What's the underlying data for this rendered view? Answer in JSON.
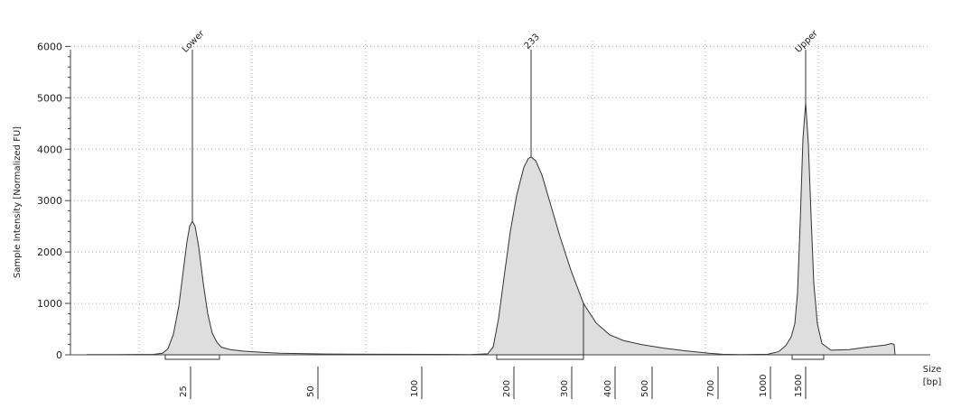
{
  "chart_data": {
    "type": "area",
    "title": "",
    "ylabel": "Sample Intensity [Normalized FU]",
    "xlabel_line1": "Size",
    "xlabel_line2": "[bp]",
    "ylim": [
      0,
      6200
    ],
    "yticks": [
      0,
      1000,
      2000,
      3000,
      4000,
      5000,
      6000
    ],
    "grid": true,
    "x_ticks": [
      {
        "label": "25",
        "x": 211
      },
      {
        "label": "50",
        "x": 352
      },
      {
        "label": "100",
        "x": 467
      },
      {
        "label": "200",
        "x": 569
      },
      {
        "label": "300",
        "x": 633
      },
      {
        "label": "400",
        "x": 681
      },
      {
        "label": "500",
        "x": 722
      },
      {
        "label": "700",
        "x": 795
      },
      {
        "label": "1000",
        "x": 853
      },
      {
        "label": "1500",
        "x": 892
      }
    ],
    "peaks": [
      {
        "label": "Lower",
        "x": 213,
        "y": 2600
      },
      {
        "label": "233",
        "x": 588,
        "y": 3850
      },
      {
        "label": "Upper",
        "x": 892,
        "y": 4900
      }
    ],
    "regions": [
      {
        "start": 183,
        "end": 243
      },
      {
        "start": 550,
        "end": 646
      },
      {
        "start": 877,
        "end": 912
      }
    ],
    "series": [
      {
        "values": [
          [
            96,
            5
          ],
          [
            130,
            6
          ],
          [
            170,
            8
          ],
          [
            180,
            30
          ],
          [
            186,
            120
          ],
          [
            192,
            400
          ],
          [
            198,
            950
          ],
          [
            203,
            1650
          ],
          [
            207,
            2200
          ],
          [
            210,
            2500
          ],
          [
            213,
            2600
          ],
          [
            216,
            2500
          ],
          [
            220,
            2100
          ],
          [
            225,
            1400
          ],
          [
            230,
            800
          ],
          [
            235,
            420
          ],
          [
            240,
            250
          ],
          [
            245,
            150
          ],
          [
            255,
            100
          ],
          [
            270,
            70
          ],
          [
            290,
            50
          ],
          [
            310,
            30
          ],
          [
            360,
            15
          ],
          [
            420,
            10
          ],
          [
            480,
            8
          ],
          [
            520,
            6
          ],
          [
            540,
            20
          ],
          [
            546,
            150
          ],
          [
            552,
            700
          ],
          [
            558,
            1500
          ],
          [
            565,
            2400
          ],
          [
            572,
            3100
          ],
          [
            580,
            3650
          ],
          [
            585,
            3820
          ],
          [
            588,
            3850
          ],
          [
            593,
            3780
          ],
          [
            600,
            3500
          ],
          [
            610,
            2900
          ],
          [
            620,
            2300
          ],
          [
            632,
            1650
          ],
          [
            646,
            1000
          ],
          [
            660,
            620
          ],
          [
            675,
            390
          ],
          [
            690,
            280
          ],
          [
            710,
            200
          ],
          [
            735,
            130
          ],
          [
            760,
            75
          ],
          [
            785,
            30
          ],
          [
            800,
            10
          ],
          [
            820,
            5
          ],
          [
            850,
            10
          ],
          [
            862,
            60
          ],
          [
            870,
            180
          ],
          [
            876,
            350
          ],
          [
            880,
            600
          ],
          [
            883,
            1200
          ],
          [
            886,
            2600
          ],
          [
            889,
            4200
          ],
          [
            892,
            4900
          ],
          [
            895,
            4100
          ],
          [
            898,
            2700
          ],
          [
            901,
            1400
          ],
          [
            905,
            600
          ],
          [
            910,
            220
          ],
          [
            920,
            90
          ],
          [
            940,
            100
          ],
          [
            960,
            150
          ],
          [
            980,
            190
          ],
          [
            987,
            220
          ],
          [
            990,
            200
          ],
          [
            991,
            5
          ]
        ]
      }
    ]
  }
}
